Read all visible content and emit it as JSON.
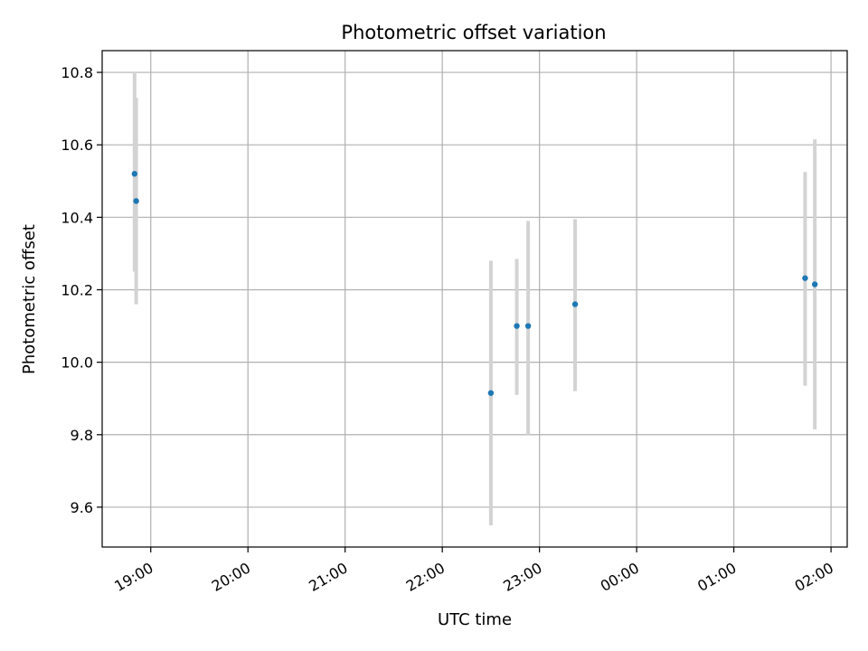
{
  "chart_data": {
    "type": "scatter",
    "title": "Photometric offset variation",
    "xlabel": "UTC time",
    "ylabel": "Photometric offset",
    "x_unit": "UTC time (HH:MM, next day after 00:00)",
    "xlim": [
      "18:30",
      "02:10"
    ],
    "ylim": [
      9.49,
      10.86
    ],
    "x_ticks": [
      "19:00",
      "20:00",
      "21:00",
      "22:00",
      "23:00",
      "00:00",
      "01:00",
      "02:00"
    ],
    "y_ticks": [
      9.6,
      9.8,
      10.0,
      10.2,
      10.4,
      10.6,
      10.8
    ],
    "y_tick_labels": [
      "9.6",
      "9.8",
      "10.0",
      "10.2",
      "10.4",
      "10.6",
      "10.8"
    ],
    "grid": true,
    "marker_color": "#1f77b4",
    "errorbar_color": "#d3d3d3",
    "points": [
      {
        "t": "18:50",
        "y": 10.52,
        "ylo": 10.25,
        "yhi": 10.8
      },
      {
        "t": "18:51",
        "y": 10.445,
        "ylo": 10.16,
        "yhi": 10.73
      },
      {
        "t": "22:30",
        "y": 9.915,
        "ylo": 9.55,
        "yhi": 10.28
      },
      {
        "t": "22:46",
        "y": 10.1,
        "ylo": 9.91,
        "yhi": 10.285
      },
      {
        "t": "22:53",
        "y": 10.1,
        "ylo": 9.8,
        "yhi": 10.39
      },
      {
        "t": "23:22",
        "y": 10.16,
        "ylo": 9.92,
        "yhi": 10.395
      },
      {
        "t": "01:44",
        "y": 10.232,
        "ylo": 9.935,
        "yhi": 10.525
      },
      {
        "t": "01:50",
        "y": 10.215,
        "ylo": 9.815,
        "yhi": 10.615
      }
    ]
  }
}
